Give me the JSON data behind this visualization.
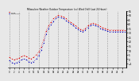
{
  "title": "Milwaukee Weather Outdoor Temperature (vs) Wind Chill (Last 24 Hours)",
  "temp_color": "#dd0000",
  "windchill_color": "#0000bb",
  "background_color": "#e8e8e8",
  "plot_bg_color": "#e8e8e8",
  "grid_color": "#888888",
  "ylim": [
    -10,
    55
  ],
  "ytick_values": [
    55,
    50,
    45,
    40,
    35,
    30,
    25,
    20,
    15,
    10,
    5,
    0,
    -5
  ],
  "temp_values": [
    2,
    0,
    -1,
    0,
    1,
    3,
    4,
    3,
    1,
    0,
    2,
    5,
    8,
    14,
    22,
    32,
    38,
    42,
    46,
    48,
    50,
    49,
    48,
    46,
    44,
    42,
    40,
    38,
    36,
    34,
    33,
    35,
    38,
    40,
    41,
    40,
    39,
    37,
    36,
    35,
    34,
    33,
    33,
    33,
    33,
    33,
    33,
    33
  ],
  "windchill_values": [
    -2,
    -4,
    -5,
    -4,
    -3,
    -1,
    0,
    -1,
    -3,
    -4,
    -3,
    0,
    4,
    10,
    18,
    28,
    35,
    39,
    43,
    46,
    48,
    47,
    46,
    44,
    42,
    40,
    38,
    36,
    34,
    32,
    31,
    33,
    36,
    38,
    39,
    38,
    37,
    35,
    34,
    33,
    32,
    31,
    31,
    31,
    31,
    31,
    31,
    31
  ],
  "num_points": 48,
  "vgrid_every": 4,
  "xticklabels": [
    "0",
    "",
    "2",
    "",
    "4",
    "",
    "6",
    "",
    "8",
    "",
    "10",
    "",
    "12",
    "",
    "14",
    "",
    "16",
    "",
    "18",
    "",
    "20",
    "",
    "22",
    "",
    "0"
  ]
}
